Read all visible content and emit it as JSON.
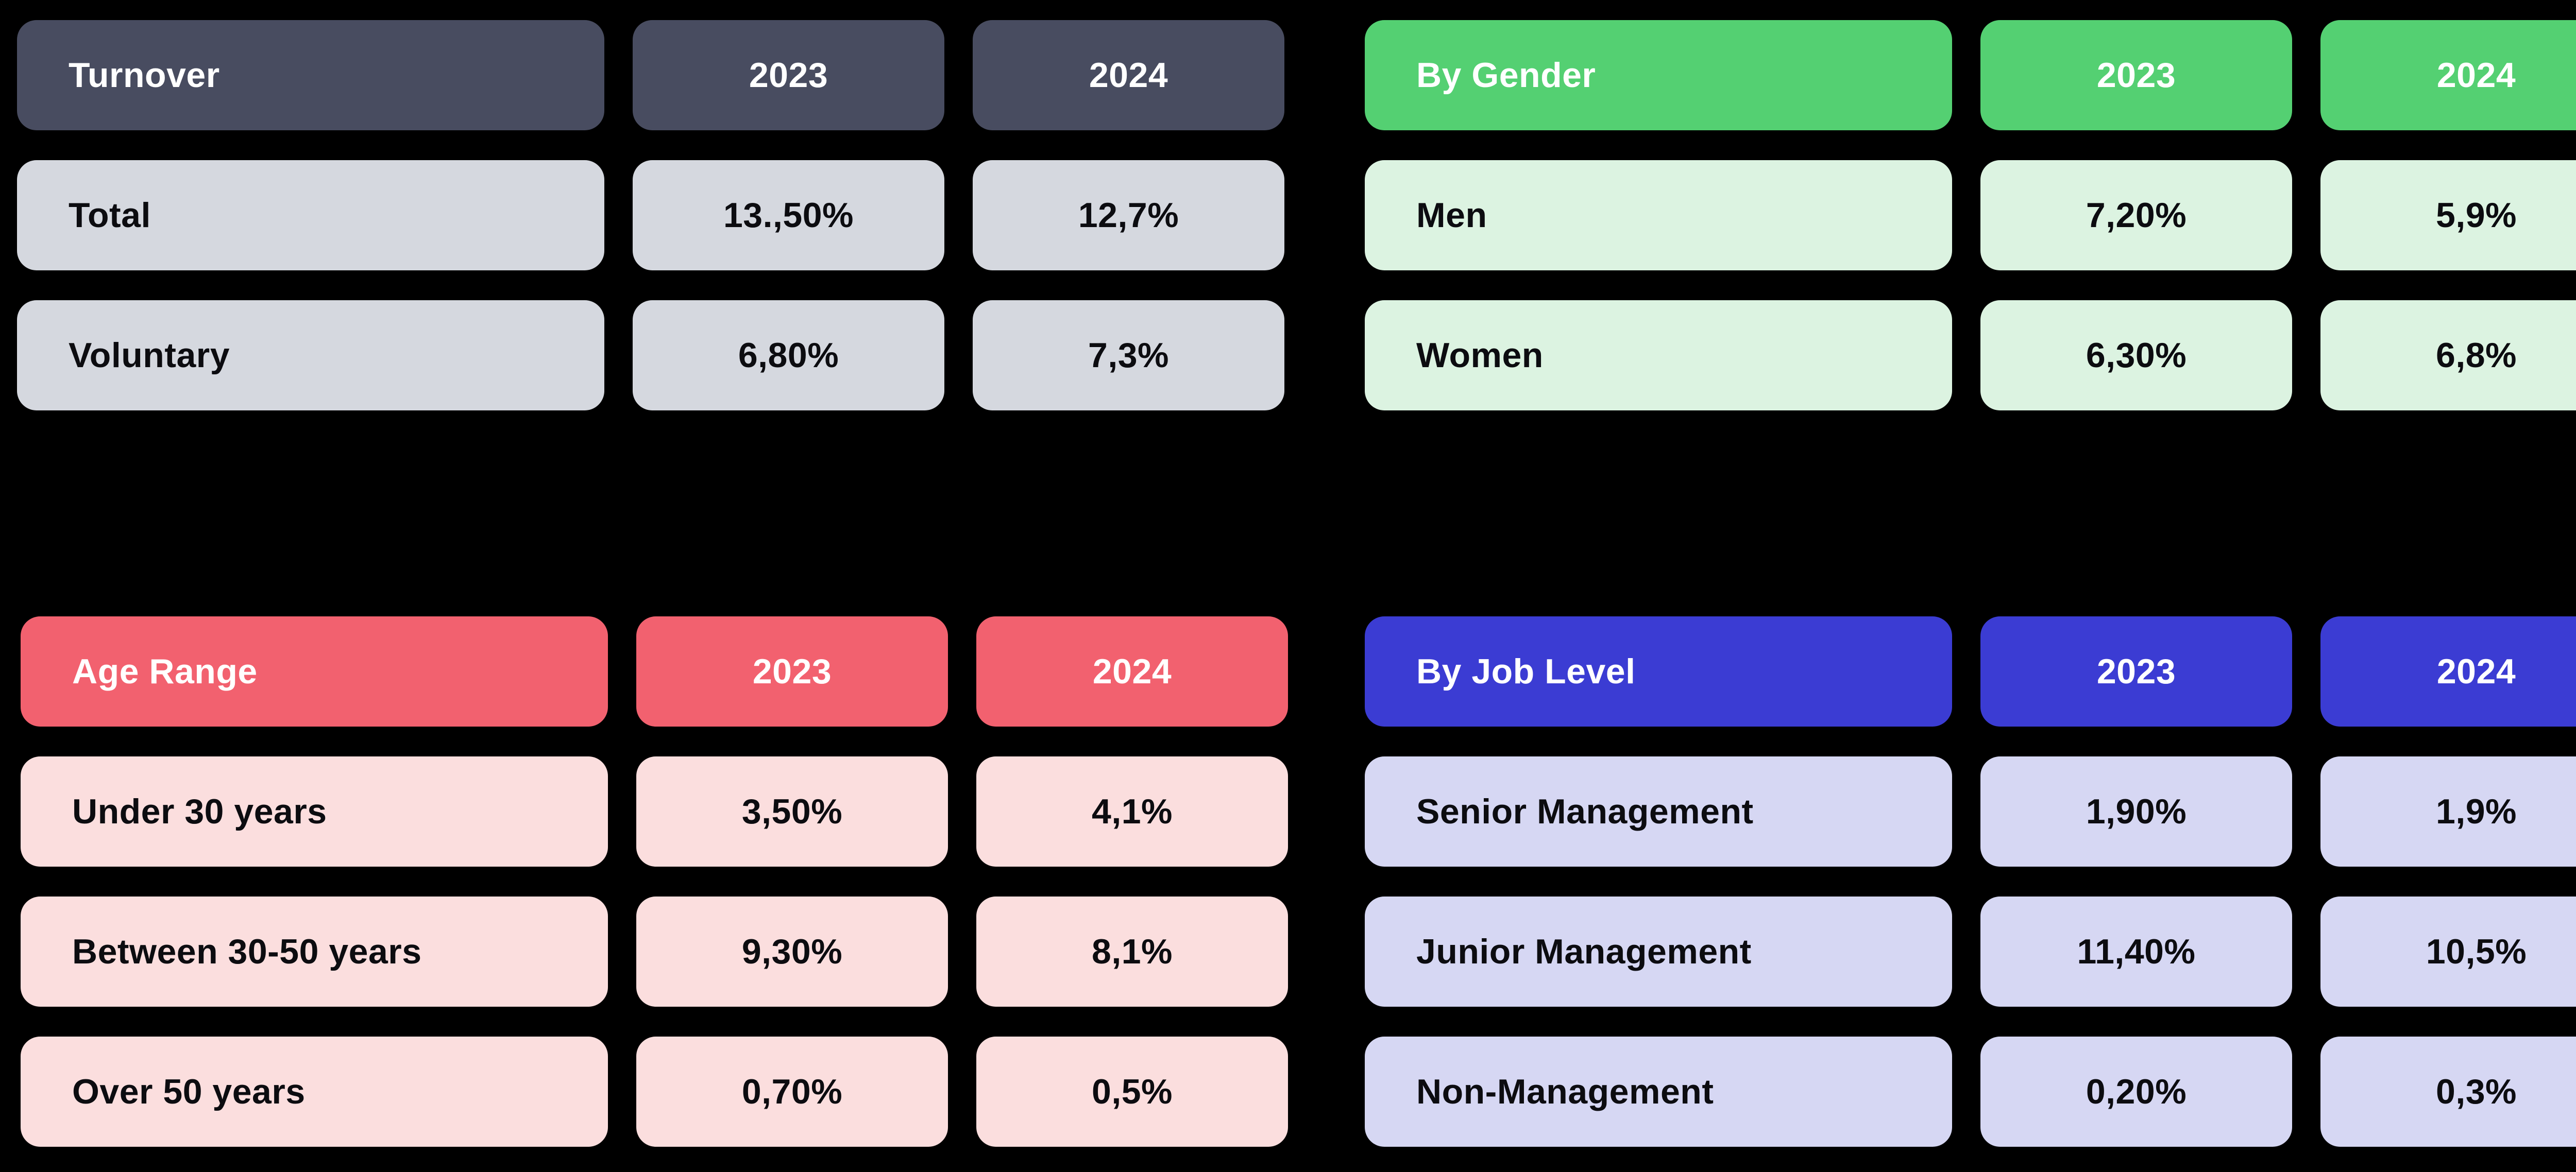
{
  "colors": {
    "background": "#000000",
    "header_text": "#ffffff",
    "row_text": "#0c0c10",
    "turnover_header_bg": "#484c60",
    "turnover_row_bg": "#d5d8df",
    "gender_header_bg": "#54d072",
    "gender_row_bg": "#dcf3e1",
    "age_header_bg": "#f2616f",
    "age_row_bg": "#fbdede",
    "job_header_bg": "#3b3cd3",
    "job_row_bg": "#d6d7f3"
  },
  "tables": [
    {
      "id": "turnover",
      "header": {
        "label": "Turnover",
        "col1": "2023",
        "col2": "2024"
      },
      "rows": [
        {
          "label": "Total",
          "col1": "13.,50%",
          "col2": "12,7%"
        },
        {
          "label": "Voluntary",
          "col1": "6,80%",
          "col2": "7,3%"
        }
      ]
    },
    {
      "id": "by_gender",
      "header": {
        "label": "By Gender",
        "col1": "2023",
        "col2": "2024"
      },
      "rows": [
        {
          "label": "Men",
          "col1": "7,20%",
          "col2": "5,9%"
        },
        {
          "label": "Women",
          "col1": "6,30%",
          "col2": "6,8%"
        }
      ]
    },
    {
      "id": "age_range",
      "header": {
        "label": "Age Range",
        "col1": "2023",
        "col2": "2024"
      },
      "rows": [
        {
          "label": "Under 30 years",
          "col1": "3,50%",
          "col2": "4,1%"
        },
        {
          "label": "Between 30-50 years",
          "col1": "9,30%",
          "col2": "8,1%"
        },
        {
          "label": "Over 50 years",
          "col1": "0,70%",
          "col2": "0,5%"
        }
      ]
    },
    {
      "id": "by_job_level",
      "header": {
        "label": "By Job Level",
        "col1": "2023",
        "col2": "2024"
      },
      "rows": [
        {
          "label": "Senior Management",
          "col1": "1,90%",
          "col2": "1,9%"
        },
        {
          "label": "Junior Management",
          "col1": "11,40%",
          "col2": "10,5%"
        },
        {
          "label": "Non-Management",
          "col1": "0,20%",
          "col2": "0,3%"
        }
      ]
    }
  ],
  "chart_data": [
    {
      "type": "table",
      "title": "Turnover",
      "columns": [
        "Turnover",
        "2023",
        "2024"
      ],
      "rows": [
        [
          "Total",
          "13.,50%",
          "12,7%"
        ],
        [
          "Voluntary",
          "6,80%",
          "7,3%"
        ]
      ]
    },
    {
      "type": "table",
      "title": "By Gender",
      "columns": [
        "By Gender",
        "2023",
        "2024"
      ],
      "rows": [
        [
          "Men",
          "7,20%",
          "5,9%"
        ],
        [
          "Women",
          "6,30%",
          "6,8%"
        ]
      ]
    },
    {
      "type": "table",
      "title": "Age Range",
      "columns": [
        "Age Range",
        "2023",
        "2024"
      ],
      "rows": [
        [
          "Under 30 years",
          "3,50%",
          "4,1%"
        ],
        [
          "Between 30-50 years",
          "9,30%",
          "8,1%"
        ],
        [
          "Over 50 years",
          "0,70%",
          "0,5%"
        ]
      ]
    },
    {
      "type": "table",
      "title": "By Job Level",
      "columns": [
        "By Job Level",
        "2023",
        "2024"
      ],
      "rows": [
        [
          "Senior Management",
          "1,90%",
          "1,9%"
        ],
        [
          "Junior Management",
          "11,40%",
          "10,5%"
        ],
        [
          "Non-Management",
          "0,20%",
          "0,3%"
        ]
      ]
    }
  ]
}
